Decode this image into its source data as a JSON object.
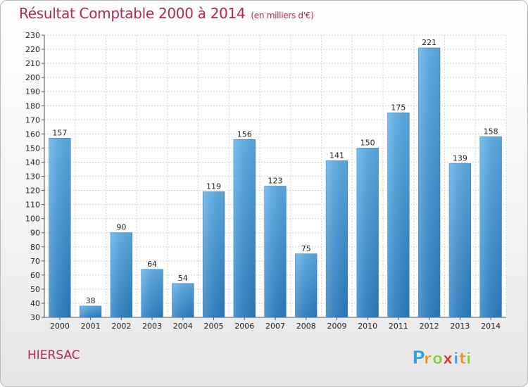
{
  "chart_data": {
    "type": "bar",
    "title": "Résultat Comptable 2000 à 2014",
    "subtitle": "(en milliers d'€)",
    "categories": [
      "2000",
      "2001",
      "2002",
      "2003",
      "2004",
      "2005",
      "2006",
      "2007",
      "2008",
      "2009",
      "2010",
      "2011",
      "2012",
      "2013",
      "2014"
    ],
    "values": [
      157,
      38,
      90,
      64,
      54,
      119,
      156,
      123,
      75,
      141,
      150,
      175,
      221,
      139,
      158
    ],
    "ylim": [
      30,
      230
    ],
    "ytick_step": 10,
    "grid": true,
    "bar_color": "#3f97dd",
    "title_color": "#b5264e"
  },
  "commune": "HIERSAC",
  "brand": {
    "letters": [
      "P",
      "r",
      "o",
      "x",
      "i",
      "t",
      "i"
    ],
    "colors": [
      "#3aa0d8",
      "#e8931f",
      "#8cc63f",
      "#e2312d",
      "#3aa0d8",
      "#e8931f",
      "#8cc63f"
    ]
  }
}
